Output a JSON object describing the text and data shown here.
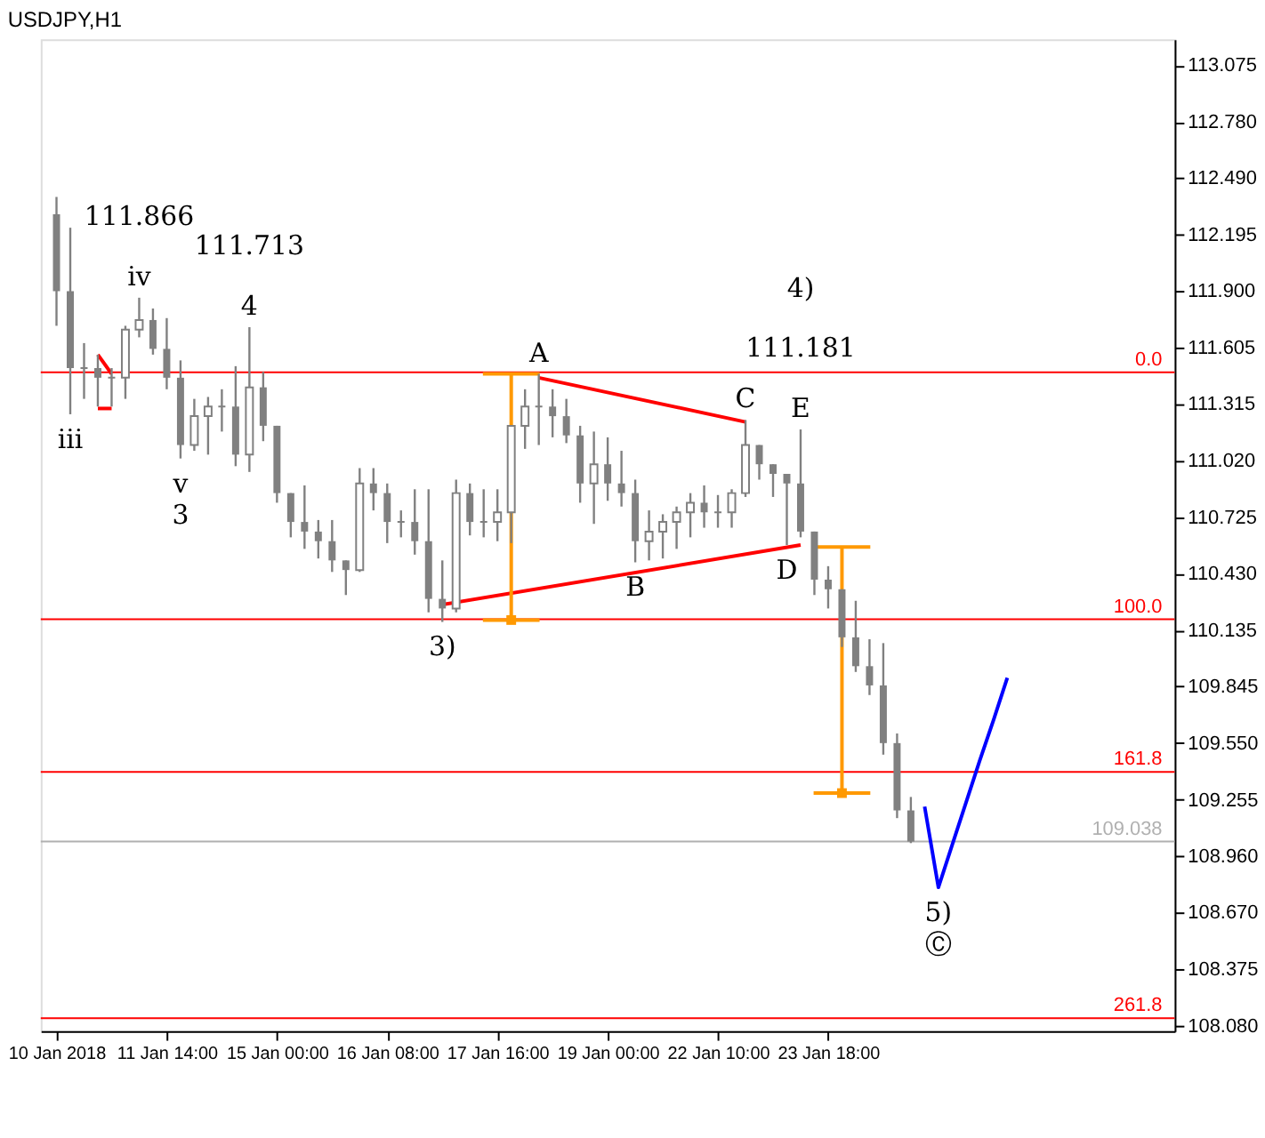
{
  "chart_data": {
    "type": "candlestick",
    "title": "USDJPY,H1",
    "color": "#808080",
    "categories": [
      "10 Jan 2018",
      null,
      null,
      null,
      null,
      null,
      null,
      null,
      "11 Jan 14:00",
      null,
      null,
      null,
      null,
      null,
      null,
      null,
      "15 Jan 00:00",
      null,
      null,
      null,
      null,
      null,
      null,
      null,
      "16 Jan 08:00",
      null,
      null,
      null,
      null,
      null,
      null,
      null,
      "17 Jan 16:00",
      null,
      null,
      null,
      null,
      null,
      null,
      null,
      "19 Jan 00:00",
      null,
      null,
      null,
      null,
      null,
      null,
      null,
      "22 Jan 10:00",
      null,
      null,
      null,
      null,
      null,
      null,
      null,
      "23 Jan 18:00",
      null,
      null,
      null,
      null,
      null,
      null,
      null,
      null,
      null,
      null,
      null,
      null,
      null,
      null,
      null,
      null,
      null,
      null,
      null,
      null,
      null,
      null,
      null,
      null
    ],
    "ohlc": [
      [
        112.3,
        112.39,
        111.72,
        111.9
      ],
      [
        111.9,
        112.23,
        111.26,
        111.5
      ],
      [
        111.5,
        111.63,
        111.34,
        111.5
      ],
      [
        111.5,
        111.57,
        111.3,
        111.45
      ],
      [
        111.45,
        111.5,
        111.3,
        111.45
      ],
      [
        111.45,
        111.72,
        111.34,
        111.7
      ],
      [
        111.7,
        111.866,
        111.66,
        111.75
      ],
      [
        111.75,
        111.81,
        111.57,
        111.6
      ],
      [
        111.6,
        111.76,
        111.39,
        111.45
      ],
      [
        111.45,
        111.54,
        111.03,
        111.1
      ],
      [
        111.1,
        111.34,
        111.07,
        111.25
      ],
      [
        111.25,
        111.35,
        111.05,
        111.3
      ],
      [
        111.3,
        111.39,
        111.17,
        111.3
      ],
      [
        111.3,
        111.51,
        110.99,
        111.05
      ],
      [
        111.05,
        111.713,
        110.96,
        111.4
      ],
      [
        111.4,
        111.48,
        111.12,
        111.2
      ],
      [
        111.2,
        111.2,
        110.8,
        110.85
      ],
      [
        110.85,
        110.85,
        110.62,
        110.7
      ],
      [
        110.7,
        110.89,
        110.56,
        110.65
      ],
      [
        110.65,
        110.71,
        110.51,
        110.6
      ],
      [
        110.6,
        110.71,
        110.44,
        110.5
      ],
      [
        110.5,
        110.5,
        110.32,
        110.45
      ],
      [
        110.45,
        110.98,
        110.44,
        110.9
      ],
      [
        110.9,
        110.98,
        110.76,
        110.85
      ],
      [
        110.85,
        110.9,
        110.59,
        110.7
      ],
      [
        110.7,
        110.76,
        110.62,
        110.7
      ],
      [
        110.7,
        110.87,
        110.53,
        110.6
      ],
      [
        110.6,
        110.87,
        110.23,
        110.3
      ],
      [
        110.3,
        110.5,
        110.18,
        110.25
      ],
      [
        110.25,
        110.92,
        110.23,
        110.85
      ],
      [
        110.85,
        110.9,
        110.63,
        110.7
      ],
      [
        110.7,
        110.87,
        110.62,
        110.7
      ],
      [
        110.7,
        110.87,
        110.6,
        110.75
      ],
      [
        110.75,
        111.2,
        110.59,
        111.2
      ],
      [
        111.2,
        111.39,
        111.08,
        111.3
      ],
      [
        111.3,
        111.47,
        111.1,
        111.3
      ],
      [
        111.3,
        111.39,
        111.14,
        111.25
      ],
      [
        111.25,
        111.34,
        111.11,
        111.15
      ],
      [
        111.15,
        111.2,
        110.8,
        110.9
      ],
      [
        110.9,
        111.17,
        110.69,
        111.0
      ],
      [
        111.0,
        111.14,
        110.81,
        110.9
      ],
      [
        110.9,
        111.07,
        110.78,
        110.85
      ],
      [
        110.85,
        110.92,
        110.49,
        110.6
      ],
      [
        110.6,
        110.76,
        110.5,
        110.65
      ],
      [
        110.65,
        110.74,
        110.51,
        110.7
      ],
      [
        110.7,
        110.78,
        110.56,
        110.75
      ],
      [
        110.75,
        110.85,
        110.62,
        110.8
      ],
      [
        110.8,
        110.89,
        110.67,
        110.75
      ],
      [
        110.75,
        110.84,
        110.67,
        110.75
      ],
      [
        110.75,
        110.87,
        110.67,
        110.85
      ],
      [
        110.85,
        111.23,
        110.83,
        111.1
      ],
      [
        111.1,
        111.1,
        110.92,
        111.0
      ],
      [
        111.0,
        111.0,
        110.83,
        110.95
      ],
      [
        110.95,
        110.95,
        110.58,
        110.9
      ],
      [
        110.9,
        111.181,
        110.62,
        110.65
      ],
      [
        110.65,
        110.65,
        110.32,
        110.4
      ],
      [
        110.4,
        110.47,
        110.25,
        110.35
      ],
      [
        110.35,
        110.35,
        110.05,
        110.1
      ],
      [
        110.1,
        110.29,
        109.92,
        109.95
      ],
      [
        109.95,
        110.09,
        109.8,
        109.85
      ],
      [
        109.85,
        110.07,
        109.49,
        109.55
      ],
      [
        109.55,
        109.6,
        109.16,
        109.2
      ],
      [
        109.2,
        109.27,
        109.03,
        109.038
      ],
      null,
      null,
      null,
      null,
      null,
      null,
      null,
      null,
      null,
      null,
      null,
      null,
      null,
      null,
      null,
      null,
      null,
      null
    ],
    "series": [
      {
        "type": "line",
        "color": "#ff0000",
        "values": [
          null,
          null,
          null,
          null,
          null,
          null,
          null,
          null,
          null,
          null,
          null,
          null,
          null,
          null,
          null,
          null,
          null,
          null,
          null,
          null,
          null,
          null,
          null,
          null,
          null,
          null,
          null,
          null,
          null,
          null,
          null,
          null,
          null,
          null,
          null,
          111.45,
          null,
          null,
          null,
          null,
          null,
          null,
          null,
          null,
          null,
          null,
          null,
          null,
          null,
          null,
          111.22,
          null,
          null,
          null,
          null,
          null,
          null,
          null,
          null,
          null,
          null,
          null,
          null,
          null,
          null,
          null,
          null,
          null,
          null,
          null,
          null,
          null,
          null,
          null,
          null,
          null,
          null,
          null,
          null,
          null,
          null
        ]
      },
      {
        "type": "line",
        "color": "#ff0000",
        "values": [
          null,
          null,
          null,
          null,
          null,
          null,
          null,
          null,
          null,
          null,
          null,
          null,
          null,
          null,
          null,
          null,
          null,
          null,
          null,
          null,
          null,
          null,
          null,
          null,
          null,
          null,
          null,
          null,
          110.27,
          null,
          null,
          null,
          null,
          null,
          null,
          null,
          null,
          null,
          null,
          null,
          null,
          null,
          null,
          null,
          null,
          null,
          null,
          null,
          null,
          null,
          null,
          null,
          null,
          null,
          110.58,
          null,
          null,
          null,
          null,
          null,
          null,
          null,
          null,
          null,
          null,
          null,
          null,
          null,
          null,
          null,
          null,
          null,
          null,
          null,
          null,
          null,
          null,
          null,
          null,
          null,
          null
        ]
      },
      {
        "type": "line",
        "color": "#ff0000",
        "values": [
          null,
          null,
          null,
          111.57,
          111.47,
          null,
          null,
          null,
          null,
          null,
          null,
          null,
          null,
          null,
          null,
          null,
          null,
          null,
          null,
          null,
          null,
          null,
          null,
          null,
          null,
          null,
          null,
          null,
          null,
          null,
          null,
          null,
          null,
          null,
          null,
          null,
          null,
          null,
          null,
          null,
          null,
          null,
          null,
          null,
          null,
          null,
          null,
          null,
          null,
          null,
          null,
          null,
          null,
          null,
          null,
          null,
          null,
          null,
          null,
          null,
          null,
          null,
          null,
          null,
          null,
          null,
          null,
          null,
          null,
          null,
          null,
          null,
          null,
          null,
          null,
          null,
          null,
          null,
          null,
          null,
          null
        ]
      },
      {
        "type": "line",
        "color": "#ff0000",
        "values": [
          null,
          null,
          null,
          111.29,
          111.29,
          null,
          null,
          null,
          null,
          null,
          null,
          null,
          null,
          null,
          null,
          null,
          null,
          null,
          null,
          null,
          null,
          null,
          null,
          null,
          null,
          null,
          null,
          null,
          null,
          null,
          null,
          null,
          null,
          null,
          null,
          null,
          null,
          null,
          null,
          null,
          null,
          null,
          null,
          null,
          null,
          null,
          null,
          null,
          null,
          null,
          null,
          null,
          null,
          null,
          null,
          null,
          null,
          null,
          null,
          null,
          null,
          null,
          null,
          null,
          null,
          null,
          null,
          null,
          null,
          null,
          null,
          null,
          null,
          null,
          null,
          null,
          null,
          null,
          null,
          null,
          null
        ]
      },
      {
        "type": "line",
        "color": "#0000ff",
        "values": [
          null,
          null,
          null,
          null,
          null,
          null,
          null,
          null,
          null,
          null,
          null,
          null,
          null,
          null,
          null,
          null,
          null,
          null,
          null,
          null,
          null,
          null,
          null,
          null,
          null,
          null,
          null,
          null,
          null,
          null,
          null,
          null,
          null,
          null,
          null,
          null,
          null,
          null,
          null,
          null,
          null,
          null,
          null,
          null,
          null,
          null,
          null,
          null,
          null,
          null,
          null,
          null,
          null,
          null,
          null,
          null,
          null,
          null,
          null,
          null,
          null,
          null,
          null,
          109.22,
          108.8,
          109.02,
          109.24,
          109.46,
          109.67,
          109.89,
          null,
          null,
          null,
          null,
          null,
          null,
          null,
          null,
          null,
          null,
          null
        ]
      },
      {
        "type": "scatter",
        "marker": "square",
        "color": "#ff9900",
        "values": [
          null,
          null,
          null,
          null,
          null,
          null,
          null,
          null,
          null,
          null,
          null,
          null,
          null,
          null,
          null,
          null,
          null,
          null,
          null,
          null,
          null,
          null,
          null,
          null,
          null,
          null,
          null,
          null,
          null,
          null,
          null,
          null,
          null,
          110.19,
          null,
          null,
          null,
          null,
          null,
          null,
          null,
          null,
          null,
          null,
          null,
          null,
          null,
          null,
          null,
          null,
          null,
          null,
          null,
          null,
          null,
          null,
          null,
          109.29,
          null,
          null,
          null,
          null,
          null,
          null,
          null,
          null,
          null,
          null,
          null,
          null,
          null,
          null,
          null,
          null,
          null,
          null,
          null,
          null,
          null,
          null,
          null
        ],
        "errors": [
          null,
          null,
          null,
          null,
          null,
          null,
          null,
          null,
          null,
          null,
          null,
          null,
          null,
          null,
          null,
          null,
          null,
          null,
          null,
          null,
          null,
          null,
          null,
          null,
          null,
          null,
          null,
          null,
          null,
          null,
          null,
          null,
          null,
          [
            110.19,
            111.47
          ],
          null,
          null,
          null,
          null,
          null,
          null,
          null,
          null,
          null,
          null,
          null,
          null,
          null,
          null,
          null,
          null,
          null,
          null,
          null,
          null,
          null,
          null,
          null,
          [
            109.29,
            110.57
          ],
          null,
          null,
          null,
          null,
          null,
          null,
          null,
          null,
          null,
          null,
          null,
          null,
          null,
          null,
          null,
          null,
          null,
          null,
          null,
          null,
          null,
          null,
          null
        ]
      }
    ],
    "ylim": [
      108.053,
      113.209
    ],
    "yticks": [
      {
        "value": 108.08,
        "label": "108.080"
      },
      {
        "value": 108.375,
        "label": "108.375"
      },
      {
        "value": 108.67,
        "label": "108.670"
      },
      {
        "value": 108.96,
        "label": "108.960"
      },
      {
        "value": 109.255,
        "label": "109.255"
      },
      {
        "value": 109.55,
        "label": "109.550"
      },
      {
        "value": 109.845,
        "label": "109.845"
      },
      {
        "value": 110.135,
        "label": "110.135"
      },
      {
        "value": 110.43,
        "label": "110.430"
      },
      {
        "value": 110.725,
        "label": "110.725"
      },
      {
        "value": 111.02,
        "label": "111.020"
      },
      {
        "value": 111.315,
        "label": "111.315"
      },
      {
        "value": 111.605,
        "label": "111.605"
      },
      {
        "value": 111.9,
        "label": "111.900"
      },
      {
        "value": 112.195,
        "label": "112.195"
      },
      {
        "value": 112.49,
        "label": "112.490"
      },
      {
        "value": 112.78,
        "label": "112.780"
      },
      {
        "value": 113.075,
        "label": "113.075"
      }
    ],
    "ref_lines": [
      {
        "axis": "y",
        "value": 111.478,
        "color": "#ff0000"
      },
      {
        "axis": "y",
        "value": 110.194,
        "color": "#ff0000"
      },
      {
        "axis": "y",
        "value": 109.4,
        "color": "#ff0000"
      },
      {
        "axis": "y",
        "value": 108.12,
        "color": "#ff0000"
      },
      {
        "axis": "y",
        "value": 109.038,
        "label": "109.038",
        "color": "#b0b0b0"
      }
    ],
    "annotations": [
      {
        "text": "0.0",
        "y": 111.478
      },
      {
        "text": "100.0",
        "y": 110.194
      },
      {
        "text": "161.8",
        "y": 109.4
      },
      {
        "text": "261.8",
        "y": 108.12
      },
      {
        "text": "iii",
        "y": 111.26
      },
      {
        "text": "iv",
        "y": 111.866
      },
      {
        "text": "111.866",
        "y": 111.866
      },
      {
        "text": "v",
        "y": 111.03
      },
      {
        "text": "3",
        "y": 111.03
      },
      {
        "text": "4",
        "y": 111.713
      },
      {
        "text": "111.713",
        "y": 111.713
      },
      {
        "text": "3)",
        "y": 110.18
      },
      {
        "text": "A",
        "y": 111.47
      },
      {
        "text": "B",
        "y": 110.49
      },
      {
        "text": "C",
        "y": 111.23
      },
      {
        "text": "D",
        "y": 110.58
      },
      {
        "text": "E",
        "y": 111.181
      },
      {
        "text": "111.181",
        "y": 111.181
      },
      "4)",
      {
        "text": "5)",
        "y": 108.8
      },
      {
        "text": "Ⓒ",
        "y": 108.8
      }
    ],
    "grid": false
  }
}
